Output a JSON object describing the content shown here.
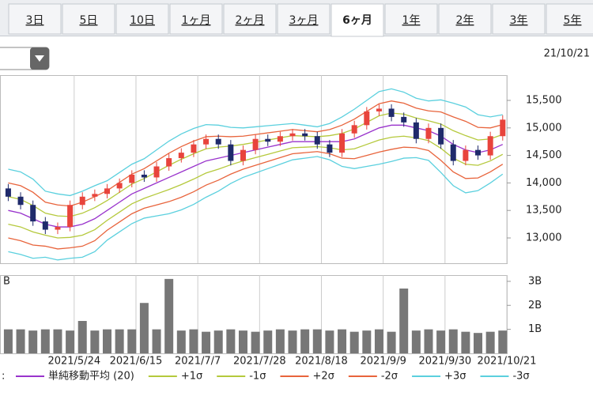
{
  "tabs": [
    "3日",
    "5日",
    "10日",
    "1ヶ月",
    "2ヶ月",
    "3ヶ月",
    "6ヶ月",
    "1年",
    "2年",
    "3年",
    "5年"
  ],
  "active_tab": 6,
  "date": "21/10/21",
  "volume_axis_label": "B",
  "legend_lead": ":",
  "chart_data": [
    {
      "type": "candlestick",
      "x": [
        1,
        4,
        7,
        10,
        13,
        16,
        19,
        22,
        25,
        28,
        31,
        34,
        37,
        40,
        43,
        46,
        49,
        52,
        55,
        58,
        61,
        64,
        67,
        70,
        73,
        76,
        79,
        82,
        85,
        88,
        91,
        94,
        97,
        100,
        103,
        106,
        109,
        112,
        115,
        118,
        121
      ],
      "open": [
        13900,
        13750,
        13600,
        13300,
        13150,
        13200,
        13600,
        13750,
        13800,
        13900,
        14000,
        14150,
        14100,
        14300,
        14450,
        14550,
        14700,
        14800,
        14700,
        14400,
        14600,
        14800,
        14750,
        14850,
        14900,
        14850,
        14700,
        14550,
        14900,
        15050,
        15300,
        15350,
        15200,
        15100,
        14800,
        15000,
        14700,
        14400,
        14600,
        14500,
        14850
      ],
      "close": [
        13750,
        13600,
        13300,
        13150,
        13200,
        13600,
        13750,
        13800,
        13900,
        14000,
        14150,
        14100,
        14300,
        14450,
        14550,
        14700,
        14800,
        14700,
        14400,
        14600,
        14800,
        14750,
        14850,
        14900,
        14850,
        14700,
        14550,
        14900,
        15050,
        15300,
        15350,
        15200,
        15100,
        14800,
        15000,
        14700,
        14400,
        14600,
        14500,
        14850,
        15150
      ],
      "high": [
        13980,
        13830,
        13680,
        13380,
        13280,
        13680,
        13830,
        13880,
        13980,
        14080,
        14230,
        14230,
        14380,
        14530,
        14630,
        14780,
        14880,
        14880,
        14780,
        14680,
        14880,
        14880,
        14930,
        14980,
        14980,
        14930,
        14780,
        14980,
        15130,
        15380,
        15430,
        15430,
        15280,
        15180,
        15080,
        15080,
        14780,
        14680,
        14680,
        14930,
        15230
      ],
      "low": [
        13670,
        13520,
        13220,
        13070,
        13070,
        13120,
        13520,
        13670,
        13720,
        13820,
        13920,
        14020,
        14020,
        14220,
        14370,
        14470,
        14620,
        14620,
        14320,
        14320,
        14520,
        14670,
        14670,
        14770,
        14770,
        14620,
        14470,
        14470,
        14820,
        14970,
        15220,
        15120,
        15020,
        14720,
        14720,
        14620,
        14320,
        14320,
        14420,
        14420,
        14770
      ],
      "up_color": "#e8443c",
      "down_color": "#1f2a6b",
      "xlim": [
        -1,
        122
      ],
      "xticks": [
        {
          "value": 17,
          "label": "2021/5/24"
        },
        {
          "value": 32,
          "label": "2021/6/15"
        },
        {
          "value": 47,
          "label": "2021/7/7"
        },
        {
          "value": 62,
          "label": "2021/7/28"
        },
        {
          "value": 77,
          "label": "2021/8/18"
        },
        {
          "value": 92,
          "label": "2021/9/9"
        },
        {
          "value": 107,
          "label": "2021/9/30"
        },
        {
          "value": 122,
          "label": "2021/10/21"
        }
      ],
      "ylim": [
        12540,
        15960
      ],
      "yticks": [
        {
          "value": 13000,
          "label": "13,000"
        },
        {
          "value": 13500,
          "label": "13,500"
        },
        {
          "value": 14000,
          "label": "14,000"
        },
        {
          "value": 14500,
          "label": "14,500"
        },
        {
          "value": 15000,
          "label": "15,000"
        },
        {
          "value": 15500,
          "label": "15,500"
        }
      ],
      "legend": "bottom",
      "series": [
        {
          "name": "単純移動平均 (20)",
          "color": "#9933cc",
          "values": [
            13500,
            13450,
            13350,
            13250,
            13200,
            13200,
            13250,
            13350,
            13500,
            13650,
            13800,
            13900,
            14000,
            14100,
            14200,
            14300,
            14400,
            14450,
            14500,
            14550,
            14600,
            14650,
            14700,
            14750,
            14750,
            14750,
            14750,
            14750,
            14800,
            14900,
            15000,
            15050,
            15050,
            15000,
            14950,
            14850,
            14700,
            14600,
            14550,
            14600,
            14700
          ]
        },
        {
          "name": "+1σ",
          "color": "#b5c93c",
          "values": [
            13750,
            13700,
            13590,
            13450,
            13400,
            13390,
            13450,
            13550,
            13680,
            13830,
            13980,
            14080,
            14200,
            14320,
            14430,
            14530,
            14620,
            14650,
            14670,
            14700,
            14740,
            14780,
            14820,
            14860,
            14850,
            14840,
            14860,
            14900,
            14980,
            15100,
            15220,
            15270,
            15250,
            15180,
            15130,
            15070,
            14950,
            14860,
            14780,
            14800,
            14880
          ]
        },
        {
          "name": "-1σ",
          "color": "#b5c93c",
          "values": [
            13250,
            13200,
            13110,
            13050,
            13000,
            13010,
            13050,
            13150,
            13320,
            13470,
            13620,
            13720,
            13800,
            13880,
            13970,
            14070,
            14180,
            14250,
            14330,
            14400,
            14460,
            14520,
            14580,
            14640,
            14650,
            14660,
            14640,
            14600,
            14620,
            14700,
            14780,
            14830,
            14850,
            14820,
            14770,
            14630,
            14450,
            14340,
            14320,
            14400,
            14520
          ]
        },
        {
          "name": "+2σ",
          "color": "#e8643c",
          "values": [
            14000,
            13950,
            13830,
            13650,
            13600,
            13580,
            13650,
            13750,
            13860,
            14010,
            14160,
            14260,
            14400,
            14540,
            14660,
            14760,
            14840,
            14850,
            14840,
            14850,
            14880,
            14910,
            14940,
            14970,
            14950,
            14930,
            14970,
            15050,
            15160,
            15300,
            15440,
            15490,
            15450,
            15360,
            15310,
            15290,
            15200,
            15120,
            15010,
            15000,
            15060
          ]
        },
        {
          "name": "-2σ",
          "color": "#e8643c",
          "values": [
            13000,
            12950,
            12870,
            12850,
            12800,
            12820,
            12850,
            12950,
            13140,
            13290,
            13440,
            13540,
            13600,
            13660,
            13740,
            13840,
            13960,
            14050,
            14160,
            14250,
            14320,
            14390,
            14460,
            14530,
            14550,
            14570,
            14530,
            14450,
            14440,
            14500,
            14560,
            14610,
            14650,
            14640,
            14590,
            14410,
            14200,
            14080,
            14090,
            14200,
            14340
          ]
        },
        {
          "name": "+3σ",
          "color": "#5bd0de",
          "values": [
            14250,
            14200,
            14070,
            13850,
            13800,
            13770,
            13850,
            13950,
            14040,
            14190,
            14340,
            14440,
            14600,
            14760,
            14890,
            14990,
            15060,
            15050,
            15010,
            15000,
            15020,
            15040,
            15060,
            15080,
            15050,
            15020,
            15080,
            15200,
            15340,
            15500,
            15660,
            15710,
            15650,
            15540,
            15490,
            15510,
            15450,
            15380,
            15240,
            15200,
            15240
          ]
        },
        {
          "name": "-3σ",
          "color": "#5bd0de",
          "values": [
            12750,
            12700,
            12630,
            12650,
            12600,
            12630,
            12650,
            12750,
            12960,
            13110,
            13260,
            13360,
            13400,
            13440,
            13510,
            13610,
            13740,
            13850,
            13990,
            14100,
            14180,
            14260,
            14340,
            14420,
            14450,
            14480,
            14420,
            14300,
            14260,
            14300,
            14340,
            14390,
            14450,
            14460,
            14410,
            14190,
            13950,
            13820,
            13860,
            14000,
            14160
          ]
        }
      ]
    },
    {
      "type": "bar",
      "x": [
        1,
        4,
        7,
        10,
        13,
        16,
        19,
        22,
        25,
        28,
        31,
        34,
        37,
        40,
        43,
        46,
        49,
        52,
        55,
        58,
        61,
        64,
        67,
        70,
        73,
        76,
        79,
        82,
        85,
        88,
        91,
        94,
        97,
        100,
        103,
        106,
        109,
        112,
        115,
        118,
        121
      ],
      "values": [
        1.0,
        1.0,
        0.95,
        1.0,
        1.0,
        0.95,
        1.35,
        0.95,
        1.0,
        1.0,
        1.0,
        2.1,
        1.0,
        3.1,
        0.95,
        1.0,
        0.9,
        0.95,
        1.0,
        0.95,
        0.9,
        0.95,
        1.0,
        0.95,
        1.0,
        1.0,
        0.95,
        1.0,
        0.9,
        0.95,
        1.0,
        0.9,
        2.7,
        0.95,
        1.0,
        0.95,
        1.0,
        0.9,
        0.85,
        0.9,
        0.95
      ],
      "color": "#777777",
      "xlim": [
        -1,
        122
      ],
      "ylim": [
        0,
        3.26
      ],
      "yticks": [
        {
          "value": 1,
          "label": "1B"
        },
        {
          "value": 2,
          "label": "2B"
        },
        {
          "value": 3,
          "label": "3B"
        }
      ]
    }
  ]
}
